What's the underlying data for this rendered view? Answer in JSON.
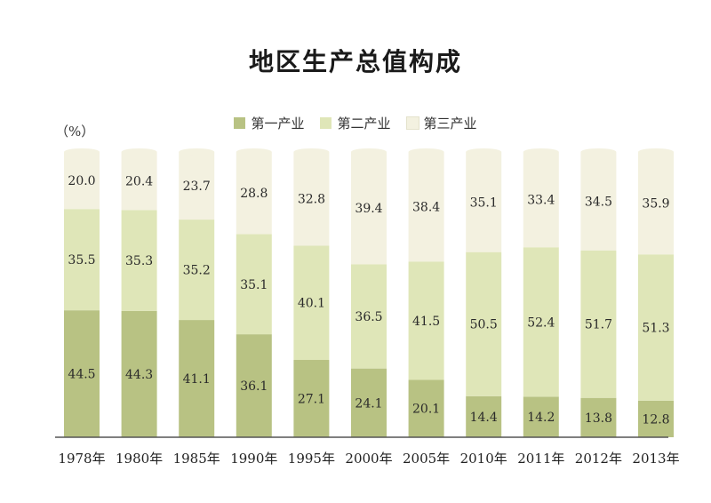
{
  "chart_data": {
    "type": "bar",
    "stacked": true,
    "percent": true,
    "title": "地区生产总值构成",
    "unit_label": "（%）",
    "categories": [
      "1978年",
      "1980年",
      "1985年",
      "1990年",
      "1995年",
      "2000年",
      "2005年",
      "2010年",
      "2011年",
      "2012年",
      "2013年"
    ],
    "series": [
      {
        "name": "第一产业",
        "color": "#b8c283",
        "values": [
          44.5,
          44.3,
          41.1,
          36.1,
          27.1,
          24.1,
          20.1,
          14.4,
          14.2,
          13.8,
          12.8
        ]
      },
      {
        "name": "第二产业",
        "color": "#dfe6b8",
        "values": [
          35.5,
          35.3,
          35.2,
          35.1,
          40.1,
          36.5,
          41.5,
          50.5,
          52.4,
          51.7,
          51.3
        ]
      },
      {
        "name": "第三产业",
        "color": "#f3f1e0",
        "values": [
          20.0,
          20.4,
          23.7,
          28.8,
          32.8,
          39.4,
          38.4,
          35.1,
          33.4,
          34.5,
          35.9
        ]
      }
    ],
    "ylim": [
      0,
      100
    ],
    "legend_position": "top-center",
    "grid": false
  }
}
